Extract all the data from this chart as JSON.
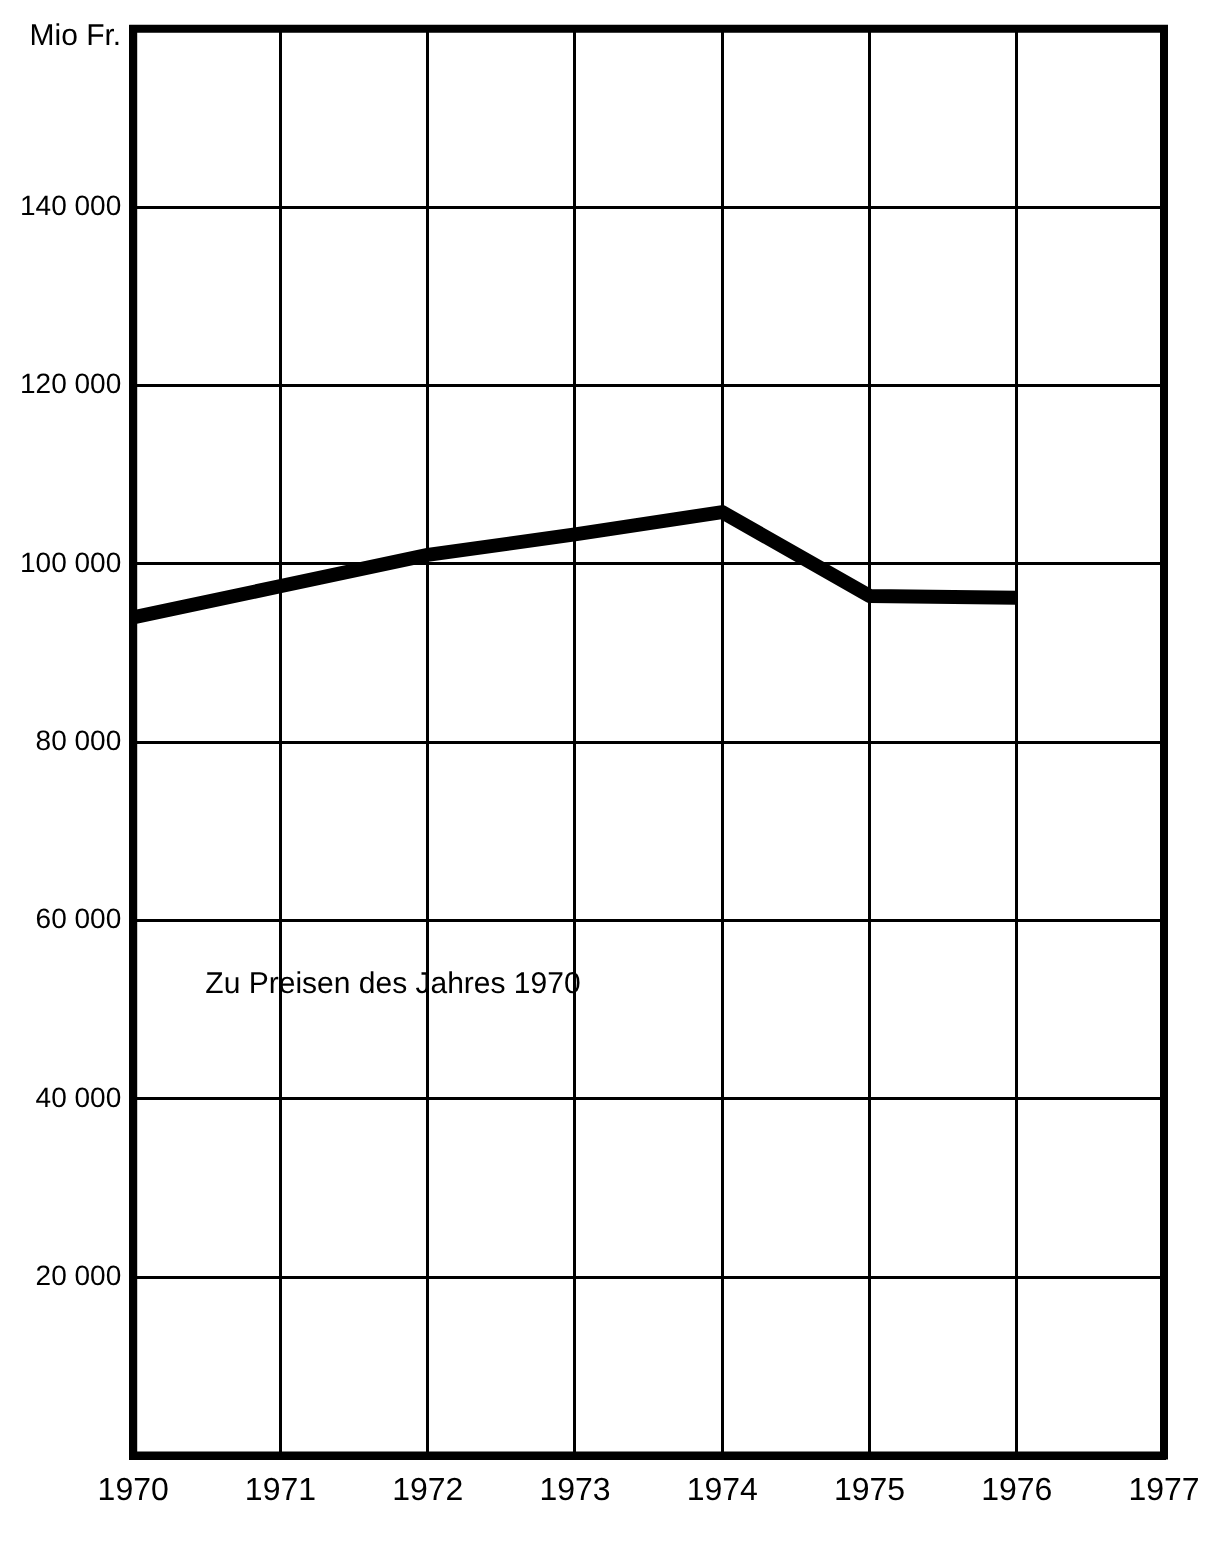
{
  "chart_data": {
    "type": "line",
    "ylabel": "Mio Fr.",
    "x": [
      1970,
      1971,
      1972,
      1973,
      1974,
      1975,
      1976
    ],
    "series": [
      {
        "color": "#000000",
        "values": [
          94000,
          97500,
          101000,
          103300,
          105800,
          96400,
          96200
        ]
      }
    ],
    "xlim": [
      1970,
      1977
    ],
    "xticks": [
      1970,
      1971,
      1972,
      1973,
      1974,
      1975,
      1976,
      1977
    ],
    "ylim": [
      0,
      160000
    ],
    "yticks": [
      {
        "value": 20000,
        "label": "20 000"
      },
      {
        "value": 40000,
        "label": "40 000"
      },
      {
        "value": 60000,
        "label": "60 000"
      },
      {
        "value": 80000,
        "label": "80 000"
      },
      {
        "value": 100000,
        "label": "100 000"
      },
      {
        "value": 120000,
        "label": "120 000"
      },
      {
        "value": 140000,
        "label": "140 000"
      }
    ],
    "grid": true,
    "legend": false,
    "marker": "none",
    "line_style": "solid",
    "annotations": [
      "Zu Preisen des Jahres 1970"
    ]
  }
}
